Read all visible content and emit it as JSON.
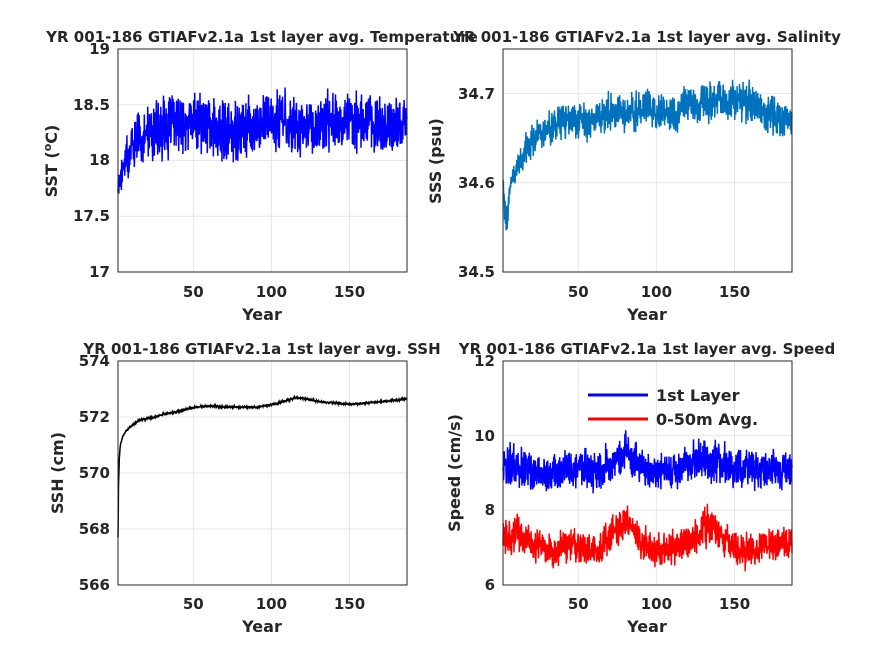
{
  "chart_data": [
    {
      "id": "sst",
      "type": "line",
      "title": "YR 001-186 GTIAFv2.1a 1st layer avg. Temperature",
      "xlabel": "Year",
      "ylabel": "SST (°C)",
      "ylabel_main": "SST (",
      "ylabel_sup": "o",
      "ylabel_tail": "C)",
      "xlim": [
        1,
        186
      ],
      "ylim": [
        17,
        19
      ],
      "xticks": [
        50,
        100,
        150
      ],
      "xtick_labels": [
        "50",
        "100",
        "150"
      ],
      "yticks": [
        17,
        17.5,
        18,
        18.5,
        19
      ],
      "ytick_labels": [
        "17",
        "17.5",
        "18",
        "18.5",
        "19"
      ],
      "grid": true,
      "series": [
        {
          "color": "#0000ff",
          "x": [
            1,
            5,
            10,
            20,
            30,
            40,
            50,
            60,
            70,
            80,
            90,
            100,
            110,
            120,
            130,
            140,
            150,
            160,
            170,
            180,
            186
          ],
          "mean": [
            17.75,
            18.0,
            18.15,
            18.25,
            18.3,
            18.32,
            18.35,
            18.3,
            18.25,
            18.28,
            18.32,
            18.35,
            18.35,
            18.3,
            18.32,
            18.35,
            18.35,
            18.32,
            18.3,
            18.3,
            18.3
          ],
          "amp": [
            0.2,
            0.3,
            0.35,
            0.4,
            0.42,
            0.4,
            0.42,
            0.42,
            0.42,
            0.42,
            0.4,
            0.42,
            0.42,
            0.42,
            0.4,
            0.42,
            0.42,
            0.42,
            0.42,
            0.4,
            0.35
          ]
        }
      ]
    },
    {
      "id": "sss",
      "type": "line",
      "title": "YR 001-186 GTIAFv2.1a 1st layer avg. Salinity",
      "xlabel": "Year",
      "ylabel": "SSS (psu)",
      "xlim": [
        1,
        186
      ],
      "ylim": [
        34.5,
        34.75
      ],
      "xticks": [
        50,
        100,
        150
      ],
      "xtick_labels": [
        "50",
        "100",
        "150"
      ],
      "yticks": [
        34.5,
        34.6,
        34.7
      ],
      "ytick_labels": [
        "34.5",
        "34.6",
        "34.7"
      ],
      "grid": true,
      "series": [
        {
          "color": "#0072bd",
          "x": [
            1,
            3,
            6,
            10,
            20,
            30,
            40,
            50,
            60,
            70,
            80,
            90,
            100,
            110,
            120,
            130,
            140,
            150,
            160,
            170,
            180,
            186
          ],
          "mean": [
            34.6,
            34.55,
            34.6,
            34.62,
            34.65,
            34.66,
            34.67,
            34.67,
            34.67,
            34.68,
            34.68,
            34.68,
            34.68,
            34.68,
            34.69,
            34.69,
            34.69,
            34.69,
            34.69,
            34.68,
            34.67,
            34.67
          ],
          "amp": [
            0.02,
            0.03,
            0.02,
            0.025,
            0.03,
            0.03,
            0.035,
            0.035,
            0.035,
            0.035,
            0.035,
            0.035,
            0.035,
            0.035,
            0.035,
            0.035,
            0.035,
            0.035,
            0.035,
            0.035,
            0.035,
            0.03
          ]
        }
      ]
    },
    {
      "id": "ssh",
      "type": "line",
      "title": "YR 001-186 GTIAFv2.1a 1st layer avg. SSH",
      "xlabel": "Year",
      "ylabel": "SSH (cm)",
      "xlim": [
        1,
        186
      ],
      "ylim": [
        566,
        574
      ],
      "xticks": [
        50,
        100,
        150
      ],
      "xtick_labels": [
        "50",
        "100",
        "150"
      ],
      "yticks": [
        566,
        568,
        570,
        572,
        574
      ],
      "ytick_labels": [
        "566",
        "568",
        "570",
        "572",
        "574"
      ],
      "grid": true,
      "series": [
        {
          "color": "#000000",
          "x": [
            1,
            1.3,
            1.8,
            2.5,
            4,
            6,
            10,
            15,
            20,
            25,
            30,
            40,
            50,
            60,
            70,
            80,
            90,
            100,
            110,
            115,
            120,
            130,
            140,
            150,
            160,
            170,
            180,
            186
          ],
          "mean": [
            567.7,
            569.5,
            570.5,
            571.0,
            571.3,
            571.5,
            571.7,
            571.9,
            571.95,
            572.0,
            572.1,
            572.2,
            572.35,
            572.4,
            572.35,
            572.35,
            572.35,
            572.45,
            572.6,
            572.7,
            572.65,
            572.55,
            572.5,
            572.45,
            572.5,
            572.55,
            572.6,
            572.65
          ],
          "amp": [
            0,
            0,
            0,
            0.02,
            0.03,
            0.04,
            0.04,
            0.05,
            0.05,
            0.05,
            0.05,
            0.05,
            0.05,
            0.05,
            0.05,
            0.05,
            0.05,
            0.05,
            0.05,
            0.05,
            0.05,
            0.05,
            0.05,
            0.05,
            0.05,
            0.05,
            0.05,
            0.05
          ]
        }
      ]
    },
    {
      "id": "speed",
      "type": "line",
      "title": "YR 001-186 GTIAFv2.1a 1st layer avg. Speed",
      "xlabel": "Year",
      "ylabel": "Speed (cm/s)",
      "xlim": [
        1,
        186
      ],
      "ylim": [
        6,
        12
      ],
      "xticks": [
        50,
        100,
        150
      ],
      "xtick_labels": [
        "50",
        "100",
        "150"
      ],
      "yticks": [
        6,
        8,
        10,
        12
      ],
      "ytick_labels": [
        "6",
        "8",
        "10",
        "12"
      ],
      "grid": true,
      "legend": "top-right",
      "series": [
        {
          "name": "1st Layer",
          "color": "#0000ff",
          "x": [
            1,
            10,
            20,
            30,
            40,
            50,
            60,
            70,
            80,
            90,
            100,
            110,
            120,
            130,
            140,
            150,
            160,
            170,
            180,
            186
          ],
          "mean": [
            9.2,
            9.2,
            9.0,
            9.0,
            9.1,
            9.1,
            9.0,
            9.3,
            9.5,
            9.2,
            9.0,
            9.1,
            9.2,
            9.4,
            9.3,
            9.1,
            9.0,
            9.1,
            9.1,
            9.1
          ],
          "amp": [
            0.9,
            0.9,
            0.8,
            0.8,
            0.8,
            0.8,
            0.8,
            0.9,
            0.9,
            0.8,
            0.8,
            0.8,
            0.8,
            0.9,
            0.9,
            0.8,
            0.8,
            0.8,
            0.8,
            0.8
          ]
        },
        {
          "name": "0-50m Avg.",
          "color": "#ff0000",
          "x": [
            1,
            10,
            20,
            30,
            40,
            50,
            60,
            70,
            80,
            90,
            100,
            110,
            120,
            130,
            140,
            150,
            160,
            170,
            180,
            186
          ],
          "mean": [
            7.2,
            7.4,
            7.1,
            6.9,
            7.0,
            7.0,
            6.9,
            7.4,
            7.6,
            7.2,
            6.9,
            7.0,
            7.2,
            7.6,
            7.4,
            7.0,
            6.9,
            7.1,
            7.1,
            7.1
          ],
          "amp": [
            0.8,
            0.8,
            0.7,
            0.7,
            0.7,
            0.7,
            0.7,
            0.8,
            0.8,
            0.7,
            0.7,
            0.7,
            0.7,
            0.8,
            0.8,
            0.7,
            0.7,
            0.7,
            0.7,
            0.7
          ]
        }
      ]
    }
  ]
}
